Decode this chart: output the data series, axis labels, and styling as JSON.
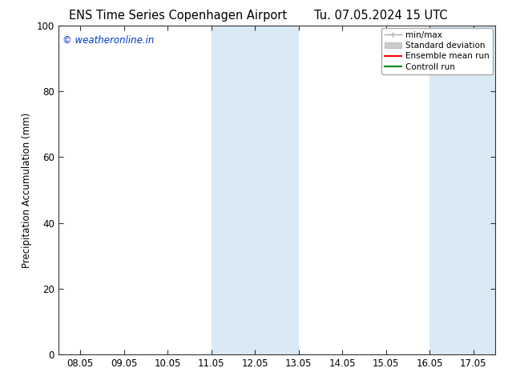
{
  "title_left": "ENS Time Series Copenhagen Airport",
  "title_right": "Tu. 07.05.2024 15 UTC",
  "ylabel": "Precipitation Accumulation (mm)",
  "ylim": [
    0,
    100
  ],
  "yticks": [
    0,
    20,
    40,
    60,
    80,
    100
  ],
  "x_labels": [
    "08.05",
    "09.05",
    "10.05",
    "11.05",
    "12.05",
    "13.05",
    "14.05",
    "15.05",
    "16.05",
    "17.05"
  ],
  "x_values": [
    0,
    1,
    2,
    3,
    4,
    5,
    6,
    7,
    8,
    9
  ],
  "xlim": [
    -0.5,
    9.5
  ],
  "shaded_bands": [
    {
      "xmin": 3.0,
      "xmax": 5.0
    },
    {
      "xmin": 8.0,
      "xmax": 9.5
    }
  ],
  "shade_color": "#daeaf5",
  "watermark_text": "© weatheronline.in",
  "watermark_color": "#0033cc",
  "bg_color": "#ffffff",
  "spine_color": "#333333",
  "title_fontsize": 10.5,
  "axis_fontsize": 8.5,
  "tick_fontsize": 8.5,
  "legend_labels": [
    "min/max",
    "Standard deviation",
    "Ensemble mean run",
    "Controll run"
  ],
  "legend_colors": [
    "#aaaaaa",
    "#cccccc",
    "#ff0000",
    "#008000"
  ]
}
